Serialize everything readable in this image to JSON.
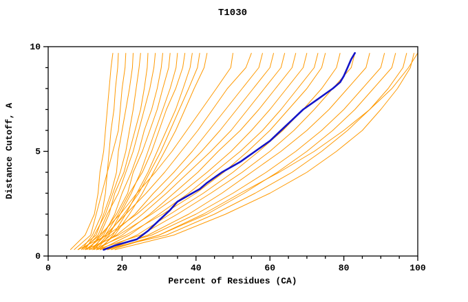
{
  "chart_data": {
    "type": "line",
    "title": "T1030",
    "xlabel": "Percent of Residues (CA)",
    "ylabel": "Distance Cutoff, A",
    "xlim": [
      0,
      100
    ],
    "ylim": [
      0,
      10
    ],
    "x_major_ticks": [
      0,
      20,
      40,
      60,
      80,
      100
    ],
    "x_minor_step": 5,
    "y_major_ticks": [
      0,
      5,
      10
    ],
    "y_minor_step": 1,
    "legend": "none",
    "grid": false,
    "colors": {
      "model_lines": "#FF9900",
      "highlight_line": "#1414C8",
      "frame": "#000000"
    },
    "y_grid": [
      0.3,
      1,
      2,
      3,
      4,
      5,
      6,
      7,
      8,
      9,
      9.7
    ],
    "series": [
      [
        6,
        10,
        12.5,
        13.5,
        14,
        15,
        15.5,
        16,
        16.5,
        17,
        17.5
      ],
      [
        7,
        11.5,
        13,
        14.5,
        16,
        16.5,
        17,
        17.8,
        18.2,
        18.8,
        19
      ],
      [
        9,
        12,
        14.5,
        15.5,
        16,
        17.5,
        19,
        19.5,
        20,
        20.8,
        21
      ],
      [
        8,
        13,
        15,
        17,
        18.5,
        19,
        20,
        21,
        22,
        22.8,
        23
      ],
      [
        10,
        12.5,
        15.5,
        17.5,
        19.5,
        21,
        22,
        23,
        23.8,
        24.6,
        25
      ],
      [
        11,
        14,
        16.5,
        18,
        20.5,
        22,
        23.5,
        25,
        26,
        26.8,
        27
      ],
      [
        9.5,
        13.5,
        16,
        19,
        21,
        23,
        24.5,
        26,
        27.5,
        28.6,
        29
      ],
      [
        12,
        15,
        18,
        20,
        22.5,
        24.5,
        26,
        28,
        29.5,
        30.6,
        31
      ],
      [
        10.5,
        14.5,
        18.5,
        21.5,
        23,
        25.5,
        27.5,
        29.5,
        31,
        32.6,
        33
      ],
      [
        13,
        16.5,
        19.5,
        22.5,
        25,
        27,
        29,
        31,
        33,
        34.6,
        35
      ],
      [
        11.5,
        15.5,
        19,
        22,
        25.5,
        28,
        30,
        32,
        34.5,
        36.4,
        37
      ],
      [
        14,
        17.5,
        21,
        24,
        27,
        29.5,
        32,
        34.5,
        36.5,
        38.4,
        39
      ],
      [
        12.5,
        16,
        20.5,
        24.5,
        27.5,
        30.5,
        33,
        35.5,
        38,
        40.4,
        41
      ],
      [
        13.5,
        18,
        22,
        25.5,
        28.5,
        31.5,
        34.5,
        37,
        39.5,
        42.2,
        43
      ],
      [
        9,
        14,
        19.5,
        24,
        29,
        33.5,
        37.5,
        41.5,
        45.5,
        49.4,
        50
      ],
      [
        10,
        15.5,
        21,
        26.5,
        31.5,
        36,
        40.5,
        44.5,
        48.5,
        53.5,
        55
      ],
      [
        12,
        17,
        23.5,
        28.5,
        34,
        39,
        43.5,
        48,
        52.5,
        57,
        58
      ],
      [
        8,
        16,
        24,
        30.5,
        36,
        41.5,
        46.5,
        51,
        55.5,
        60,
        61
      ],
      [
        11,
        18.5,
        25.5,
        32,
        38,
        44,
        49.5,
        54,
        58.5,
        63,
        64
      ],
      [
        13,
        20,
        27.5,
        34,
        40.5,
        46,
        52,
        57,
        61.5,
        66,
        67
      ],
      [
        10,
        19,
        28,
        36,
        43,
        49.5,
        55,
        60,
        64.5,
        69,
        70
      ],
      [
        14,
        22,
        30,
        38,
        45,
        52,
        58,
        63,
        67.5,
        72,
        73
      ],
      [
        12,
        21,
        31,
        40,
        47.5,
        54,
        60,
        65,
        70,
        74,
        75
      ],
      [
        15,
        24,
        33,
        42,
        50,
        57,
        63.5,
        69,
        74,
        78,
        79
      ],
      [
        13,
        25,
        35,
        44,
        52.5,
        60,
        66.5,
        72,
        77,
        82,
        83
      ],
      [
        16,
        27,
        38,
        47,
        55,
        63,
        70,
        76,
        81,
        86,
        87
      ],
      [
        14,
        28,
        40,
        50,
        59,
        67,
        74,
        80,
        85,
        90,
        91
      ],
      [
        17,
        30,
        43,
        53,
        62,
        70,
        77,
        83,
        88,
        93,
        94
      ],
      [
        15,
        32,
        45,
        56,
        66,
        74,
        81,
        87,
        92,
        96,
        97
      ],
      [
        18,
        34,
        48,
        60,
        70,
        78,
        85,
        90,
        94.5,
        98,
        99
      ],
      [
        16,
        30,
        42,
        52,
        62.5,
        72,
        80,
        87,
        93,
        97.5,
        100
      ]
    ],
    "highlight": {
      "x": [
        15,
        18,
        24,
        27,
        30,
        33,
        35,
        37,
        39,
        41,
        43,
        47,
        52,
        56,
        60,
        63,
        66,
        69,
        73,
        77,
        79,
        80,
        81,
        82,
        83
      ],
      "y": [
        0.3,
        0.5,
        0.8,
        1.2,
        1.7,
        2.2,
        2.6,
        2.8,
        3.0,
        3.2,
        3.5,
        4.0,
        4.5,
        5.0,
        5.5,
        6.0,
        6.5,
        7.0,
        7.5,
        8.0,
        8.3,
        8.6,
        9.0,
        9.4,
        9.7
      ]
    }
  }
}
